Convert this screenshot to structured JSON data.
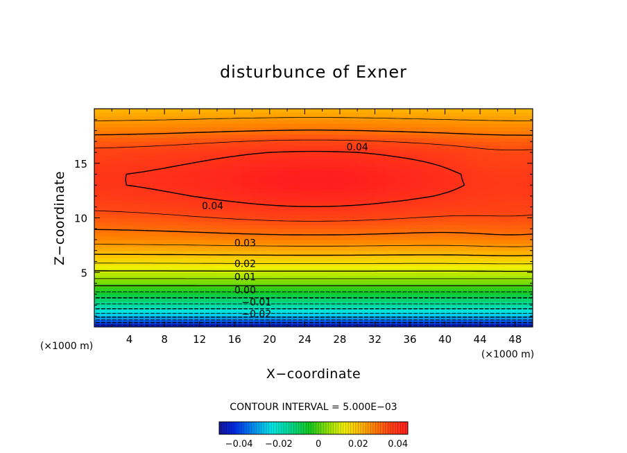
{
  "chart_data": {
    "type": "heatmap",
    "title": "disturbunce of Exner",
    "xlabel": "X−coordinate",
    "ylabel": "Z−coordinate",
    "x_unit": "(×1000 m)",
    "y_unit": "(×1000 m)",
    "xlim": [
      0,
      50
    ],
    "ylim": [
      0,
      20
    ],
    "x_ticks": [
      4,
      8,
      12,
      16,
      20,
      24,
      28,
      32,
      36,
      40,
      44,
      48
    ],
    "y_ticks": [
      5,
      10,
      15
    ],
    "x_tick_labels": [
      "4",
      "8",
      "12",
      "16",
      "20",
      "24",
      "28",
      "32",
      "36",
      "40",
      "44",
      "48"
    ],
    "y_tick_labels": [
      "5",
      "10",
      "15"
    ],
    "contour_interval_text": "CONTOUR INTERVAL = 5.000E−03",
    "contour_interval": 0.005,
    "value_range": [
      -0.05,
      0.045
    ],
    "contour_labels": [
      {
        "text": "0.04",
        "x": 30.0,
        "z": 16.5
      },
      {
        "text": "0.04",
        "x": 13.5,
        "z": 11.1
      },
      {
        "text": "0.03",
        "x": 17.2,
        "z": 7.7
      },
      {
        "text": "0.02",
        "x": 17.2,
        "z": 5.8
      },
      {
        "text": "0.01",
        "x": 17.2,
        "z": 4.6
      },
      {
        "text": "0.00",
        "x": 17.2,
        "z": 3.4
      },
      {
        "text": "−0.01",
        "x": 18.5,
        "z": 2.3
      },
      {
        "text": "−0.02",
        "x": 18.5,
        "z": 1.2
      }
    ],
    "field_profile": {
      "z": [
        0,
        0.5,
        1,
        2,
        3,
        4,
        5,
        6,
        7,
        8,
        9,
        10,
        11,
        12,
        13,
        14,
        15,
        16,
        17,
        18,
        20
      ],
      "value": [
        -0.045,
        -0.035,
        -0.025,
        -0.013,
        -0.004,
        0.005,
        0.012,
        0.019,
        0.025,
        0.03,
        0.033,
        0.036,
        0.0385,
        0.0405,
        0.042,
        0.042,
        0.0405,
        0.039,
        0.0355,
        0.031,
        0.024
      ]
    },
    "colorbar": {
      "min": -0.05,
      "max": 0.045,
      "tick_labels": [
        "−0.04",
        "−0.02",
        "0",
        "0.02",
        "0.04"
      ],
      "tick_values": [
        -0.04,
        -0.02,
        0,
        0.02,
        0.04
      ]
    }
  }
}
